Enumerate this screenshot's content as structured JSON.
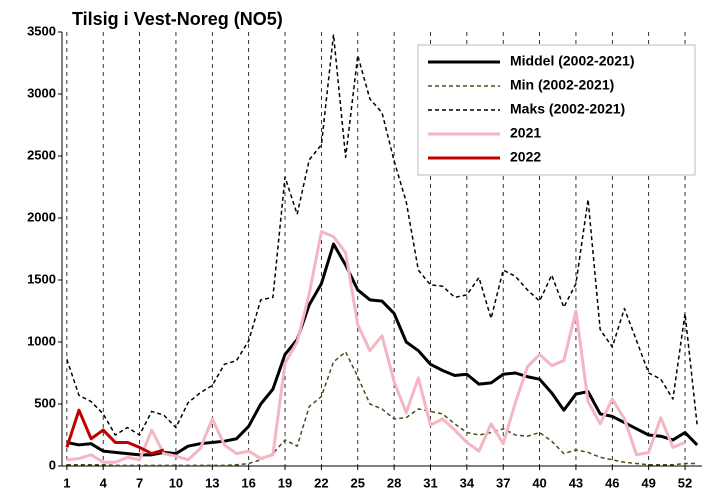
{
  "chart_data": {
    "type": "line",
    "title": "Tilsig i Vest-Noreg (NO5)",
    "x": [
      1,
      2,
      3,
      4,
      5,
      6,
      7,
      8,
      9,
      10,
      11,
      12,
      13,
      14,
      15,
      16,
      17,
      18,
      19,
      20,
      21,
      22,
      23,
      24,
      25,
      26,
      27,
      28,
      29,
      30,
      31,
      32,
      33,
      34,
      35,
      36,
      37,
      38,
      39,
      40,
      41,
      42,
      43,
      44,
      45,
      46,
      47,
      48,
      49,
      50,
      51,
      52,
      53
    ],
    "xlim": [
      0.6,
      53.4
    ],
    "xticks": [
      1,
      4,
      7,
      10,
      13,
      16,
      19,
      22,
      25,
      28,
      31,
      34,
      37,
      40,
      43,
      46,
      49,
      52
    ],
    "ylim": [
      0,
      3500
    ],
    "yticks": [
      0,
      500,
      1000,
      1500,
      2000,
      2500,
      3000,
      3500
    ],
    "grid": "x",
    "legend": "top-right",
    "series": [
      {
        "name": "Middel (2002-2021)",
        "color": "#000000",
        "line_width": 3,
        "dashed": false,
        "values": [
          190,
          170,
          180,
          120,
          110,
          100,
          90,
          90,
          110,
          100,
          160,
          180,
          190,
          200,
          220,
          320,
          500,
          620,
          900,
          1020,
          1300,
          1470,
          1790,
          1620,
          1420,
          1340,
          1330,
          1230,
          1000,
          930,
          820,
          770,
          730,
          740,
          660,
          670,
          740,
          750,
          720,
          700,
          590,
          450,
          580,
          600,
          420,
          400,
          350,
          300,
          250,
          240,
          210,
          270,
          170
        ]
      },
      {
        "name": "Min (2002-2021)",
        "color": "#4d4d1a",
        "line_width": 1.5,
        "dashed": true,
        "values": [
          10,
          10,
          10,
          10,
          5,
          5,
          5,
          5,
          5,
          5,
          5,
          5,
          5,
          5,
          10,
          20,
          50,
          100,
          210,
          160,
          480,
          560,
          840,
          920,
          720,
          500,
          460,
          380,
          390,
          460,
          440,
          420,
          340,
          270,
          250,
          270,
          300,
          250,
          240,
          270,
          200,
          100,
          130,
          110,
          70,
          50,
          30,
          20,
          10,
          10,
          10,
          20,
          20
        ]
      },
      {
        "name": "Maks (2002-2021)",
        "color": "#000000",
        "line_width": 1.5,
        "dashed": true,
        "values": [
          860,
          570,
          520,
          420,
          250,
          310,
          250,
          440,
          410,
          310,
          510,
          590,
          650,
          820,
          850,
          1010,
          1340,
          1360,
          2330,
          2030,
          2470,
          2590,
          3480,
          2490,
          3310,
          2960,
          2850,
          2460,
          2130,
          1580,
          1460,
          1450,
          1360,
          1380,
          1520,
          1190,
          1580,
          1530,
          1420,
          1330,
          1540,
          1280,
          1470,
          2150,
          1100,
          960,
          1270,
          1010,
          750,
          700,
          540,
          1230,
          330
        ]
      },
      {
        "name": "2021",
        "color": "#f4b6c2",
        "line_width": 3,
        "dashed": false,
        "values": [
          50,
          60,
          90,
          30,
          30,
          70,
          50,
          290,
          100,
          80,
          50,
          140,
          380,
          170,
          100,
          120,
          60,
          90,
          830,
          1000,
          1390,
          1890,
          1850,
          1720,
          1140,
          930,
          1050,
          680,
          430,
          710,
          330,
          380,
          290,
          190,
          120,
          340,
          180,
          510,
          800,
          900,
          810,
          850,
          1250,
          520,
          340,
          540,
          380,
          90,
          110,
          390,
          150,
          190,
          null
        ]
      },
      {
        "name": "2022",
        "color": "#c00000",
        "line_width": 3,
        "dashed": false,
        "values": [
          150,
          450,
          220,
          290,
          190,
          190,
          150,
          100,
          130,
          null,
          null,
          null,
          null,
          null,
          null,
          null,
          null,
          null,
          null,
          null,
          null,
          null,
          null,
          null,
          null,
          null,
          null,
          null,
          null,
          null,
          null,
          null,
          null,
          null,
          null,
          null,
          null,
          null,
          null,
          null,
          null,
          null,
          null,
          null,
          null,
          null,
          null,
          null,
          null,
          null,
          null,
          null,
          null
        ]
      }
    ]
  }
}
